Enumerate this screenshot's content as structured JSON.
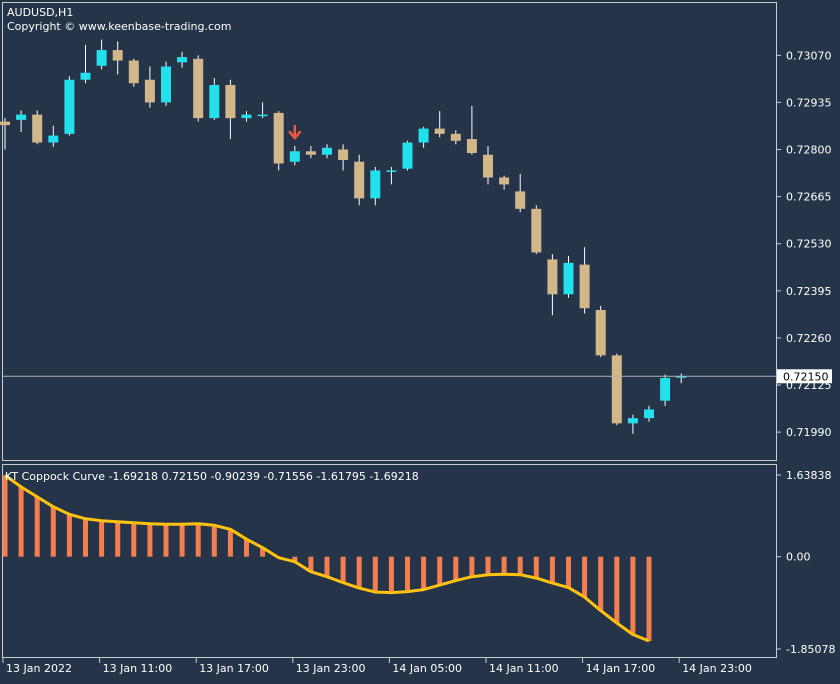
{
  "chart_data": [
    {
      "type": "candlestick",
      "symbol_label": "AUDUSD,H1",
      "copyright": "Copyright © www.keenbase-trading.com",
      "ylim": [
        0.7191,
        0.7322
      ],
      "yticks": [
        "0.73070",
        "0.72935",
        "0.72800",
        "0.72665",
        "0.72530",
        "0.72395",
        "0.72260",
        "0.72125",
        "0.71990"
      ],
      "current_price": 0.7215,
      "current_price_label": "0.72150",
      "colors": {
        "bull": "#22e0ec",
        "bear": "#d2b889",
        "current_line": "#aeb4bc",
        "arrow": "#f05a3c",
        "grid_frame": "#c8ccd2"
      },
      "signal_arrow": {
        "index": 18,
        "direction": "down"
      },
      "candles": [
        {
          "o": 0.7288,
          "h": 0.7289,
          "l": 0.728,
          "c": 0.7287
        },
        {
          "o": 0.72885,
          "h": 0.72912,
          "l": 0.7285,
          "c": 0.729
        },
        {
          "o": 0.729,
          "h": 0.72912,
          "l": 0.72815,
          "c": 0.7282
        },
        {
          "o": 0.7282,
          "h": 0.72868,
          "l": 0.72808,
          "c": 0.7284
        },
        {
          "o": 0.72845,
          "h": 0.7301,
          "l": 0.7284,
          "c": 0.73
        },
        {
          "o": 0.73,
          "h": 0.731,
          "l": 0.7299,
          "c": 0.7302
        },
        {
          "o": 0.7304,
          "h": 0.73115,
          "l": 0.7303,
          "c": 0.73085
        },
        {
          "o": 0.73085,
          "h": 0.7311,
          "l": 0.73015,
          "c": 0.73055
        },
        {
          "o": 0.73055,
          "h": 0.7306,
          "l": 0.7298,
          "c": 0.7299
        },
        {
          "o": 0.73,
          "h": 0.73038,
          "l": 0.7292,
          "c": 0.72935
        },
        {
          "o": 0.72935,
          "h": 0.73052,
          "l": 0.72925,
          "c": 0.73038
        },
        {
          "o": 0.7305,
          "h": 0.7308,
          "l": 0.73035,
          "c": 0.73065
        },
        {
          "o": 0.7306,
          "h": 0.7307,
          "l": 0.7288,
          "c": 0.7289
        },
        {
          "o": 0.7289,
          "h": 0.73005,
          "l": 0.72885,
          "c": 0.72985
        },
        {
          "o": 0.72985,
          "h": 0.73,
          "l": 0.7283,
          "c": 0.7289
        },
        {
          "o": 0.7289,
          "h": 0.7291,
          "l": 0.7288,
          "c": 0.729
        },
        {
          "o": 0.729,
          "h": 0.72935,
          "l": 0.7289,
          "c": 0.729
        },
        {
          "o": 0.72905,
          "h": 0.7291,
          "l": 0.7274,
          "c": 0.7276
        },
        {
          "o": 0.72765,
          "h": 0.7281,
          "l": 0.72755,
          "c": 0.72795
        },
        {
          "o": 0.72795,
          "h": 0.7281,
          "l": 0.72775,
          "c": 0.72785
        },
        {
          "o": 0.72785,
          "h": 0.72815,
          "l": 0.72775,
          "c": 0.72805
        },
        {
          "o": 0.728,
          "h": 0.72815,
          "l": 0.7274,
          "c": 0.7277
        },
        {
          "o": 0.72765,
          "h": 0.72785,
          "l": 0.7264,
          "c": 0.7266
        },
        {
          "o": 0.7266,
          "h": 0.7275,
          "l": 0.7264,
          "c": 0.7274
        },
        {
          "o": 0.7274,
          "h": 0.7275,
          "l": 0.727,
          "c": 0.7274
        },
        {
          "o": 0.72745,
          "h": 0.72825,
          "l": 0.7274,
          "c": 0.7282
        },
        {
          "o": 0.7282,
          "h": 0.72865,
          "l": 0.72805,
          "c": 0.7286
        },
        {
          "o": 0.7286,
          "h": 0.7291,
          "l": 0.72835,
          "c": 0.72845
        },
        {
          "o": 0.72845,
          "h": 0.72855,
          "l": 0.72815,
          "c": 0.72825
        },
        {
          "o": 0.7283,
          "h": 0.72925,
          "l": 0.72785,
          "c": 0.7279
        },
        {
          "o": 0.72785,
          "h": 0.7281,
          "l": 0.727,
          "c": 0.7272
        },
        {
          "o": 0.7272,
          "h": 0.72725,
          "l": 0.72685,
          "c": 0.727
        },
        {
          "o": 0.7268,
          "h": 0.7273,
          "l": 0.7262,
          "c": 0.7263
        },
        {
          "o": 0.7263,
          "h": 0.7264,
          "l": 0.725,
          "c": 0.72505
        },
        {
          "o": 0.72485,
          "h": 0.725,
          "l": 0.72325,
          "c": 0.72385
        },
        {
          "o": 0.72385,
          "h": 0.72495,
          "l": 0.72375,
          "c": 0.72475
        },
        {
          "o": 0.7247,
          "h": 0.7252,
          "l": 0.7233,
          "c": 0.72345
        },
        {
          "o": 0.7234,
          "h": 0.72352,
          "l": 0.72205,
          "c": 0.7221
        },
        {
          "o": 0.7221,
          "h": 0.72215,
          "l": 0.7201,
          "c": 0.72015
        },
        {
          "o": 0.72015,
          "h": 0.7204,
          "l": 0.71985,
          "c": 0.7203
        },
        {
          "o": 0.7203,
          "h": 0.72065,
          "l": 0.7202,
          "c": 0.72055
        },
        {
          "o": 0.7208,
          "h": 0.72155,
          "l": 0.72065,
          "c": 0.72145
        },
        {
          "o": 0.7215,
          "h": 0.72158,
          "l": 0.7213,
          "c": 0.7215
        }
      ],
      "x_ticks": [
        {
          "index": 0,
          "label": "13 Jan 2022"
        },
        {
          "index": 6,
          "label": "13 Jan 11:00"
        },
        {
          "index": 12,
          "label": "13 Jan 17:00"
        },
        {
          "index": 18,
          "label": "13 Jan 23:00"
        },
        {
          "index": 24,
          "label": "14 Jan 05:00"
        },
        {
          "index": 30,
          "label": "14 Jan 11:00"
        },
        {
          "index": 36,
          "label": "14 Jan 17:00"
        },
        {
          "index": 42,
          "label": "14 Jan 23:00"
        }
      ]
    },
    {
      "type": "bar+line",
      "indicator_label": "KT Coppock Curve -1.69218 0.72150 -0.90239 -0.71556 -1.61795 -1.69218",
      "ylim": [
        -1.85078,
        1.63838
      ],
      "yticks": [
        "1.63838",
        "0.00",
        "-1.85078"
      ],
      "colors": {
        "bars": "#f47f4e",
        "line": "#ffc20e"
      },
      "values": [
        1.63,
        1.4,
        1.2,
        1.0,
        0.85,
        0.76,
        0.72,
        0.7,
        0.68,
        0.66,
        0.65,
        0.65,
        0.66,
        0.63,
        0.55,
        0.35,
        0.18,
        -0.02,
        -0.1,
        -0.3,
        -0.4,
        -0.52,
        -0.63,
        -0.71,
        -0.72,
        -0.7,
        -0.66,
        -0.57,
        -0.48,
        -0.4,
        -0.36,
        -0.35,
        -0.36,
        -0.43,
        -0.53,
        -0.62,
        -0.81,
        -1.08,
        -1.33,
        -1.56,
        -1.69
      ]
    }
  ]
}
